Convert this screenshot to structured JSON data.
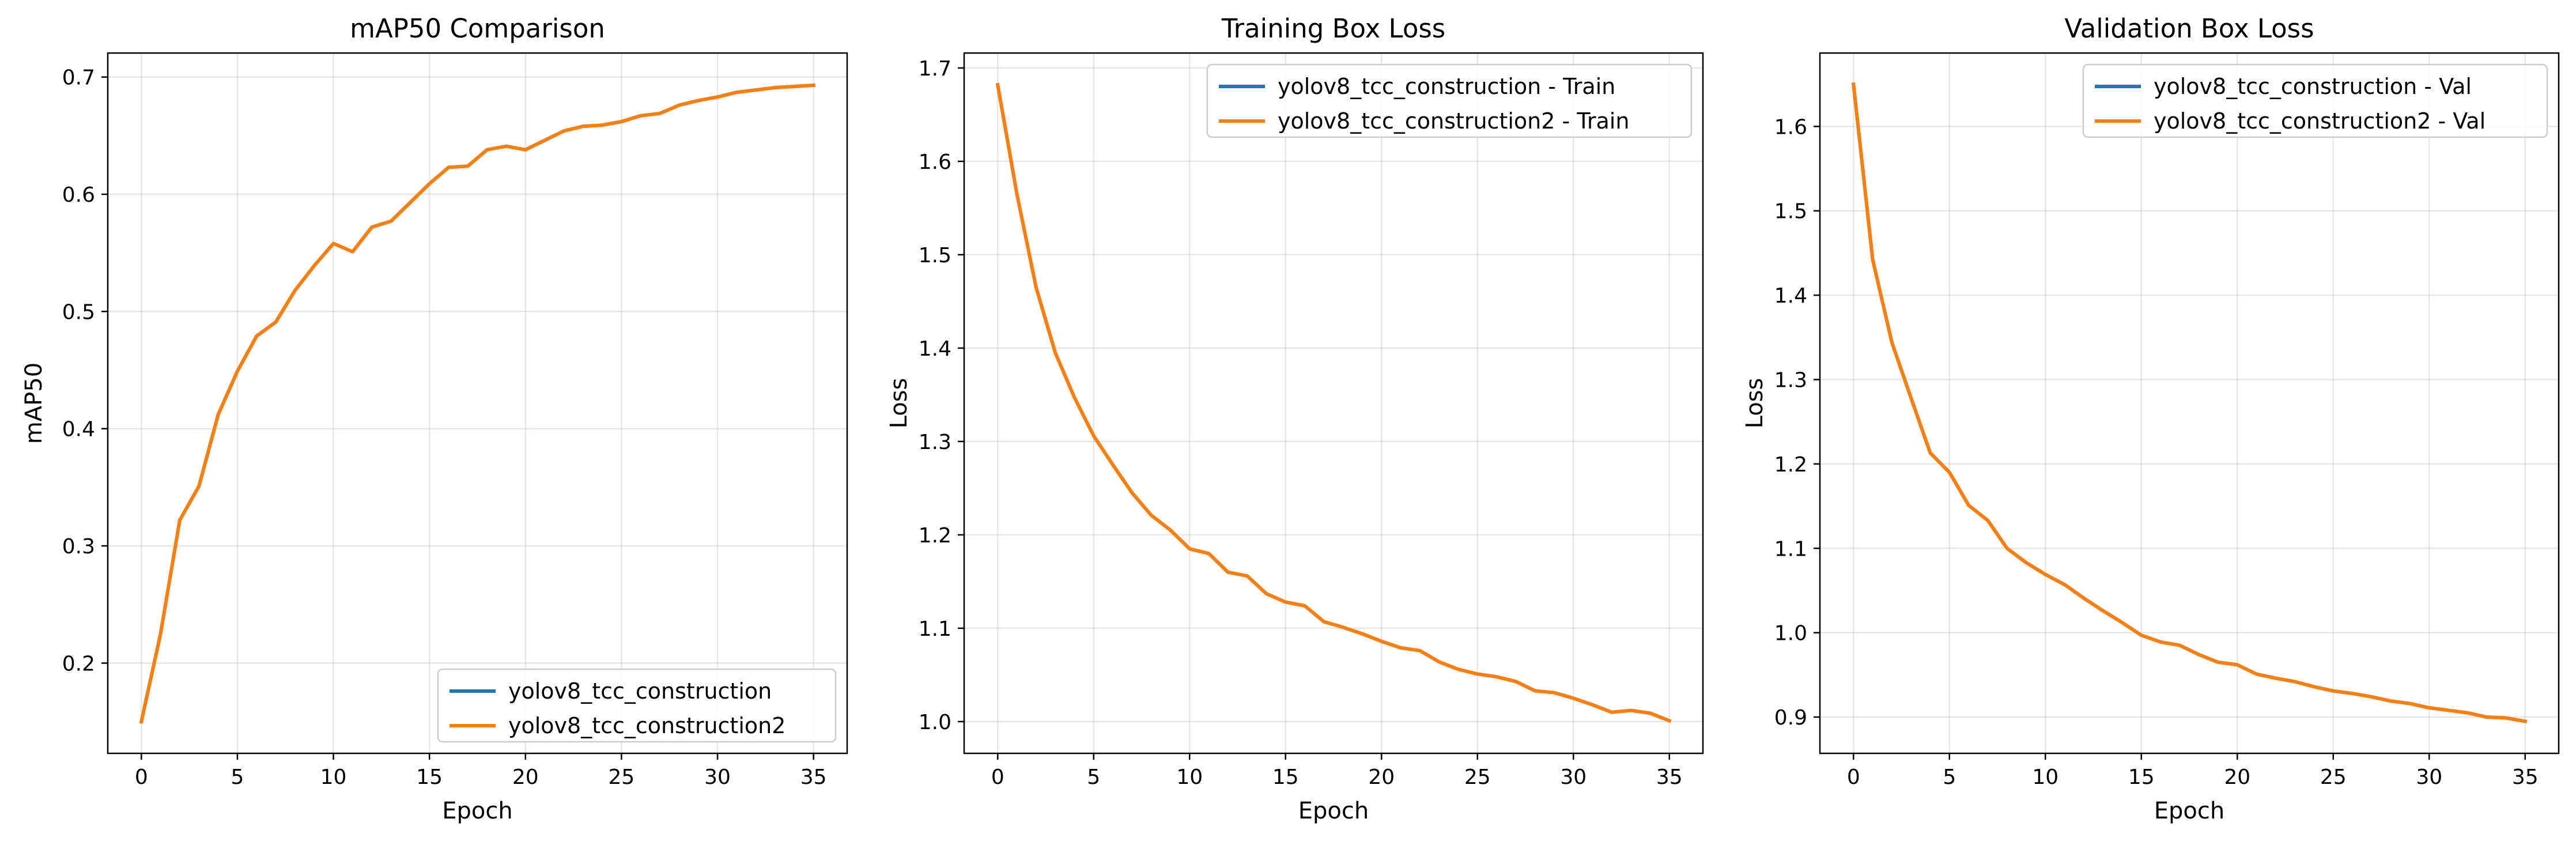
{
  "chart_data": [
    {
      "type": "line",
      "title": "mAP50 Comparison",
      "xlabel": "Epoch",
      "ylabel": "mAP50",
      "xlim": [
        -1.75,
        36.75
      ],
      "ylim": [
        0.123,
        0.7205
      ],
      "xticks": [
        0,
        5,
        10,
        15,
        20,
        25,
        30,
        35
      ],
      "yticks": [
        0.2,
        0.3,
        0.4,
        0.5,
        0.6,
        0.7
      ],
      "xtick_labels": [
        "0",
        "5",
        "10",
        "15",
        "20",
        "25",
        "30",
        "35"
      ],
      "ytick_labels": [
        "0.2",
        "0.3",
        "0.4",
        "0.5",
        "0.6",
        "0.7"
      ],
      "grid": true,
      "legend_position": "lower-right",
      "x": [
        0,
        1,
        2,
        3,
        4,
        5,
        6,
        7,
        8,
        9,
        10,
        11,
        12,
        13,
        14,
        15,
        16,
        17,
        18,
        19,
        20,
        21,
        22,
        23,
        24,
        25,
        26,
        27,
        28,
        29,
        30,
        31,
        32,
        33,
        34,
        35
      ],
      "series": [
        {
          "name": "yolov8_tcc_construction",
          "color": "#1f77b4",
          "hidden": true,
          "values": [
            0.15,
            0.225,
            0.322,
            0.351,
            0.412,
            0.449,
            0.479,
            0.491,
            0.518,
            0.539,
            0.558,
            0.551,
            0.572,
            0.577,
            0.593,
            0.609,
            0.623,
            0.624,
            0.638,
            0.641,
            0.638,
            0.646,
            0.654,
            0.658,
            0.659,
            0.662,
            0.667,
            0.669,
            0.676,
            0.68,
            0.683,
            0.687,
            0.689,
            0.691,
            0.692,
            0.693
          ]
        },
        {
          "name": "yolov8_tcc_construction2",
          "color": "#ff7f0e",
          "values": [
            0.15,
            0.225,
            0.322,
            0.351,
            0.412,
            0.449,
            0.479,
            0.491,
            0.518,
            0.539,
            0.558,
            0.551,
            0.572,
            0.577,
            0.593,
            0.609,
            0.623,
            0.624,
            0.638,
            0.641,
            0.638,
            0.646,
            0.654,
            0.658,
            0.659,
            0.662,
            0.667,
            0.669,
            0.676,
            0.68,
            0.683,
            0.687,
            0.689,
            0.691,
            0.692,
            0.693
          ]
        }
      ]
    },
    {
      "type": "line",
      "title": "Training Box Loss",
      "xlabel": "Epoch",
      "ylabel": "Loss",
      "xlim": [
        -1.75,
        36.75
      ],
      "ylim": [
        0.966,
        1.716
      ],
      "xticks": [
        0,
        5,
        10,
        15,
        20,
        25,
        30,
        35
      ],
      "yticks": [
        1.0,
        1.1,
        1.2,
        1.3,
        1.4,
        1.5,
        1.6,
        1.7
      ],
      "xtick_labels": [
        "0",
        "5",
        "10",
        "15",
        "20",
        "25",
        "30",
        "35"
      ],
      "ytick_labels": [
        "1.0",
        "1.1",
        "1.2",
        "1.3",
        "1.4",
        "1.5",
        "1.6",
        "1.7"
      ],
      "grid": true,
      "legend_position": "top-right",
      "x": [
        0,
        1,
        2,
        3,
        4,
        5,
        6,
        7,
        8,
        9,
        10,
        11,
        12,
        13,
        14,
        15,
        16,
        17,
        18,
        19,
        20,
        21,
        22,
        23,
        24,
        25,
        26,
        27,
        28,
        29,
        30,
        31,
        32,
        33,
        34,
        35
      ],
      "series": [
        {
          "name": "yolov8_tcc_construction - Train",
          "color": "#1f77b4",
          "hidden": true,
          "values": [
            1.682,
            1.565,
            1.465,
            1.395,
            1.347,
            1.306,
            1.275,
            1.245,
            1.221,
            1.205,
            1.185,
            1.18,
            1.16,
            1.156,
            1.137,
            1.128,
            1.124,
            1.107,
            1.101,
            1.094,
            1.086,
            1.079,
            1.076,
            1.064,
            1.056,
            1.051,
            1.048,
            1.043,
            1.033,
            1.031,
            1.025,
            1.018,
            1.01,
            1.012,
            1.009,
            1.001
          ]
        },
        {
          "name": "yolov8_tcc_construction2 - Train",
          "color": "#ff7f0e",
          "values": [
            1.682,
            1.565,
            1.465,
            1.395,
            1.347,
            1.306,
            1.275,
            1.245,
            1.221,
            1.205,
            1.185,
            1.18,
            1.16,
            1.156,
            1.137,
            1.128,
            1.124,
            1.107,
            1.101,
            1.094,
            1.086,
            1.079,
            1.076,
            1.064,
            1.056,
            1.051,
            1.048,
            1.043,
            1.033,
            1.031,
            1.025,
            1.018,
            1.01,
            1.012,
            1.009,
            1.001
          ]
        }
      ]
    },
    {
      "type": "line",
      "title": "Validation Box Loss",
      "xlabel": "Epoch",
      "ylabel": "Loss",
      "xlim": [
        -1.75,
        36.75
      ],
      "ylim": [
        0.857,
        1.687
      ],
      "xticks": [
        0,
        5,
        10,
        15,
        20,
        25,
        30,
        35
      ],
      "yticks": [
        0.9,
        1.0,
        1.1,
        1.2,
        1.3,
        1.4,
        1.5,
        1.6
      ],
      "xtick_labels": [
        "0",
        "5",
        "10",
        "15",
        "20",
        "25",
        "30",
        "35"
      ],
      "ytick_labels": [
        "0.9",
        "1.0",
        "1.1",
        "1.2",
        "1.3",
        "1.4",
        "1.5",
        "1.6"
      ],
      "grid": true,
      "legend_position": "top-right",
      "x": [
        0,
        1,
        2,
        3,
        4,
        5,
        6,
        7,
        8,
        9,
        10,
        11,
        12,
        13,
        14,
        15,
        16,
        17,
        18,
        19,
        20,
        21,
        22,
        23,
        24,
        25,
        26,
        27,
        28,
        29,
        30,
        31,
        32,
        33,
        34,
        35
      ],
      "series": [
        {
          "name": "yolov8_tcc_construction - Val",
          "color": "#1f77b4",
          "hidden": true,
          "values": [
            1.65,
            1.442,
            1.344,
            1.278,
            1.213,
            1.19,
            1.151,
            1.133,
            1.1,
            1.083,
            1.069,
            1.057,
            1.041,
            1.026,
            1.012,
            0.997,
            0.989,
            0.985,
            0.974,
            0.965,
            0.962,
            0.951,
            0.946,
            0.942,
            0.936,
            0.931,
            0.928,
            0.924,
            0.919,
            0.916,
            0.911,
            0.908,
            0.905,
            0.9,
            0.899,
            0.895
          ]
        },
        {
          "name": "yolov8_tcc_construction2 - Val",
          "color": "#ff7f0e",
          "values": [
            1.65,
            1.442,
            1.344,
            1.278,
            1.213,
            1.19,
            1.151,
            1.133,
            1.1,
            1.083,
            1.069,
            1.057,
            1.041,
            1.026,
            1.012,
            0.997,
            0.989,
            0.985,
            0.974,
            0.965,
            0.962,
            0.951,
            0.946,
            0.942,
            0.936,
            0.931,
            0.928,
            0.924,
            0.919,
            0.916,
            0.911,
            0.908,
            0.905,
            0.9,
            0.899,
            0.895
          ]
        }
      ]
    }
  ]
}
